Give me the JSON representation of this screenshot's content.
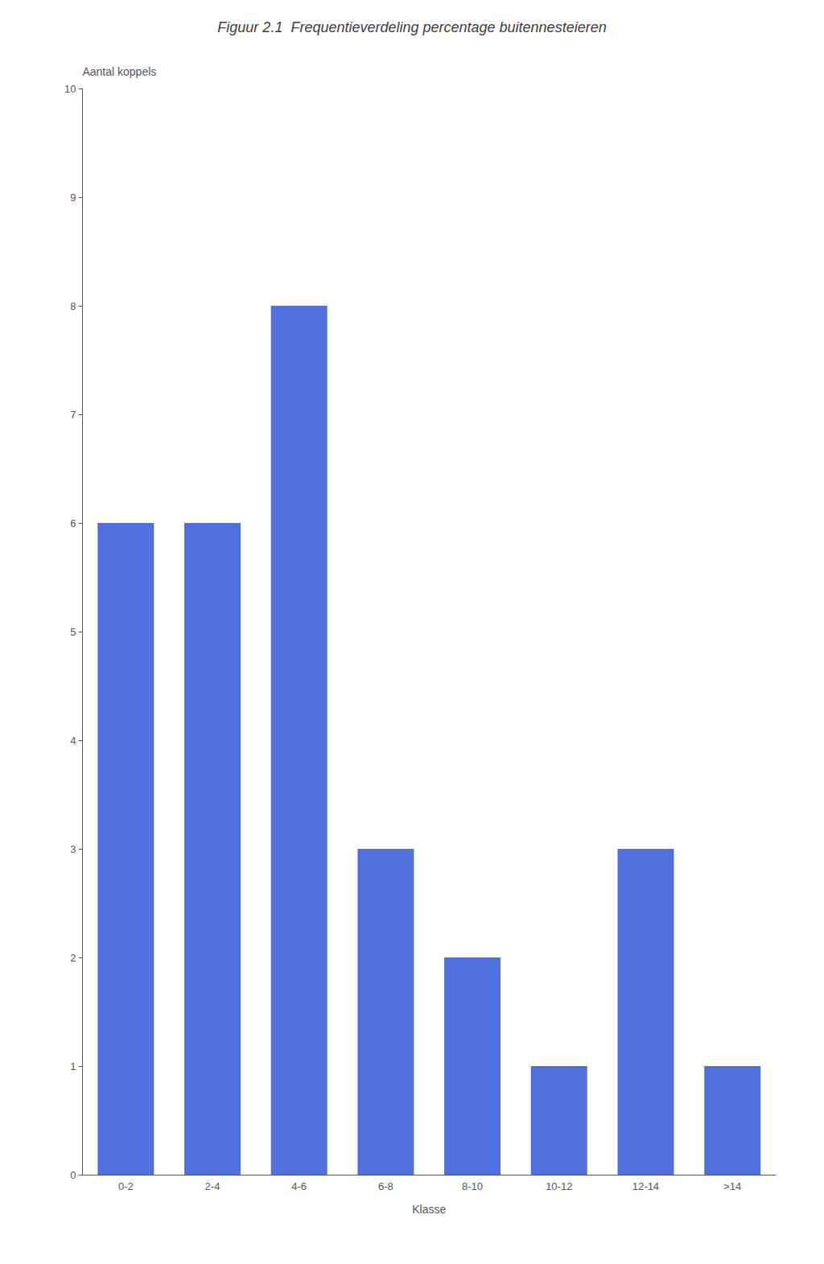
{
  "chart_data": {
    "type": "bar",
    "title": "Figuur 2.1  Frequentieverdeling percentage buitennesteieren",
    "xlabel": "Klasse",
    "ylabel": "Aantal koppels",
    "categories": [
      "0-2",
      "2-4",
      "4-6",
      "6-8",
      "8-10",
      "10-12",
      "12-14",
      ">14"
    ],
    "values": [
      6,
      6,
      8,
      3,
      2,
      1,
      3,
      1
    ],
    "ylim": [
      0,
      10
    ],
    "yticks": [
      0,
      1,
      2,
      3,
      4,
      5,
      6,
      7,
      8,
      9,
      10
    ],
    "grid": false
  }
}
